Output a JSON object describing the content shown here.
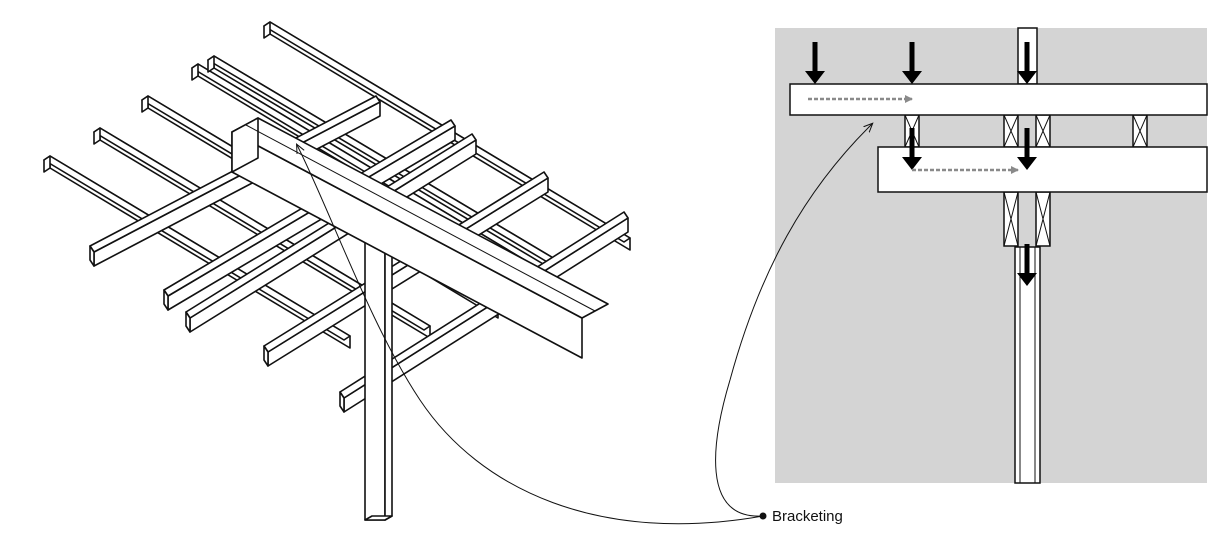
{
  "callout": {
    "label": "Bracketing"
  },
  "colors": {
    "panel_background": "#d4d4d4",
    "lumber_fill": "#ffffff",
    "line": "#111111",
    "load_arrow": "#000000",
    "transfer_arrow": "#8a8a8a"
  },
  "icons": {
    "load": "down-arrow-icon",
    "transfer": "dashed-right-arrow-icon"
  }
}
